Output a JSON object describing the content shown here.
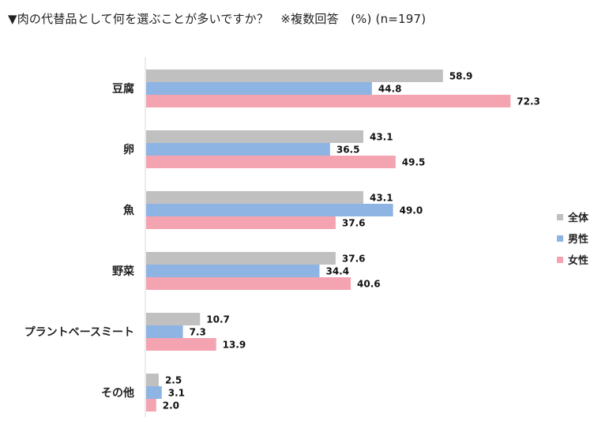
{
  "chart_data": {
    "type": "bar",
    "orientation": "horizontal",
    "title": "▼肉の代替品として何を選ぶことが多いですか？　※複数回答　(%) (n=197)",
    "categories": [
      "豆腐",
      "卵",
      "魚",
      "野菜",
      "プラントベースミート",
      "その他"
    ],
    "series": [
      {
        "name": "全体",
        "color": "#c0c0c0",
        "values": [
          58.9,
          43.1,
          43.1,
          37.6,
          10.7,
          2.5
        ]
      },
      {
        "name": "男性",
        "color": "#8eb4e3",
        "values": [
          44.8,
          36.5,
          49.0,
          34.4,
          7.3,
          3.1
        ]
      },
      {
        "name": "女性",
        "color": "#f4a3b1",
        "values": [
          72.3,
          49.5,
          37.6,
          40.6,
          13.9,
          2.0
        ]
      }
    ],
    "xlim": [
      0,
      100
    ],
    "legend": "right",
    "grid": false,
    "axis_color": "#d9d9d9"
  }
}
